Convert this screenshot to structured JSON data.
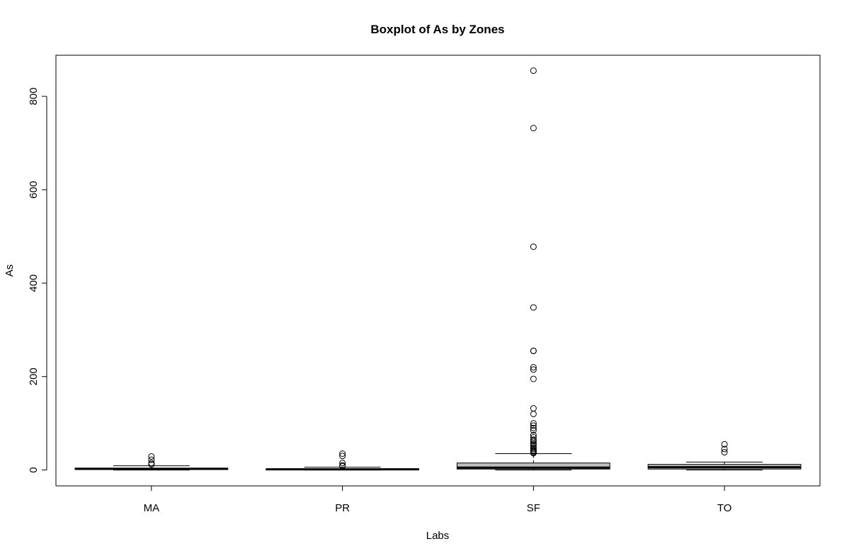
{
  "chart_data": {
    "type": "boxplot",
    "title": "Boxplot of As by Zones",
    "xlabel": "Labs",
    "ylabel": "As",
    "ylim": [
      -34,
      888
    ],
    "yticks": [
      0,
      200,
      400,
      600,
      800
    ],
    "categories": [
      "MA",
      "PR",
      "SF",
      "TO"
    ],
    "box_fill": "#bebebe",
    "series": [
      {
        "category": "MA",
        "whisker_low": 0,
        "q1": 1,
        "median": 2.5,
        "q3": 4,
        "whisker_high": 9,
        "outliers": [
          12,
          15,
          22,
          29
        ]
      },
      {
        "category": "PR",
        "whisker_low": 0,
        "q1": 0.5,
        "median": 1.5,
        "q3": 2.5,
        "whisker_high": 6,
        "outliers": [
          8,
          10,
          15,
          30,
          35
        ]
      },
      {
        "category": "SF",
        "whisker_low": 0,
        "q1": 2,
        "median": 5,
        "q3": 15,
        "whisker_high": 35,
        "outliers": [
          36,
          38,
          40,
          42,
          45,
          48,
          52,
          55,
          58,
          62,
          65,
          70,
          75,
          85,
          90,
          95,
          100,
          120,
          132,
          195,
          215,
          220,
          255,
          255,
          348,
          478,
          732,
          855
        ]
      },
      {
        "category": "TO",
        "whisker_low": 0,
        "q1": 2,
        "median": 6,
        "q3": 12,
        "whisker_high": 17,
        "outliers": [
          38,
          45,
          55
        ]
      }
    ]
  }
}
